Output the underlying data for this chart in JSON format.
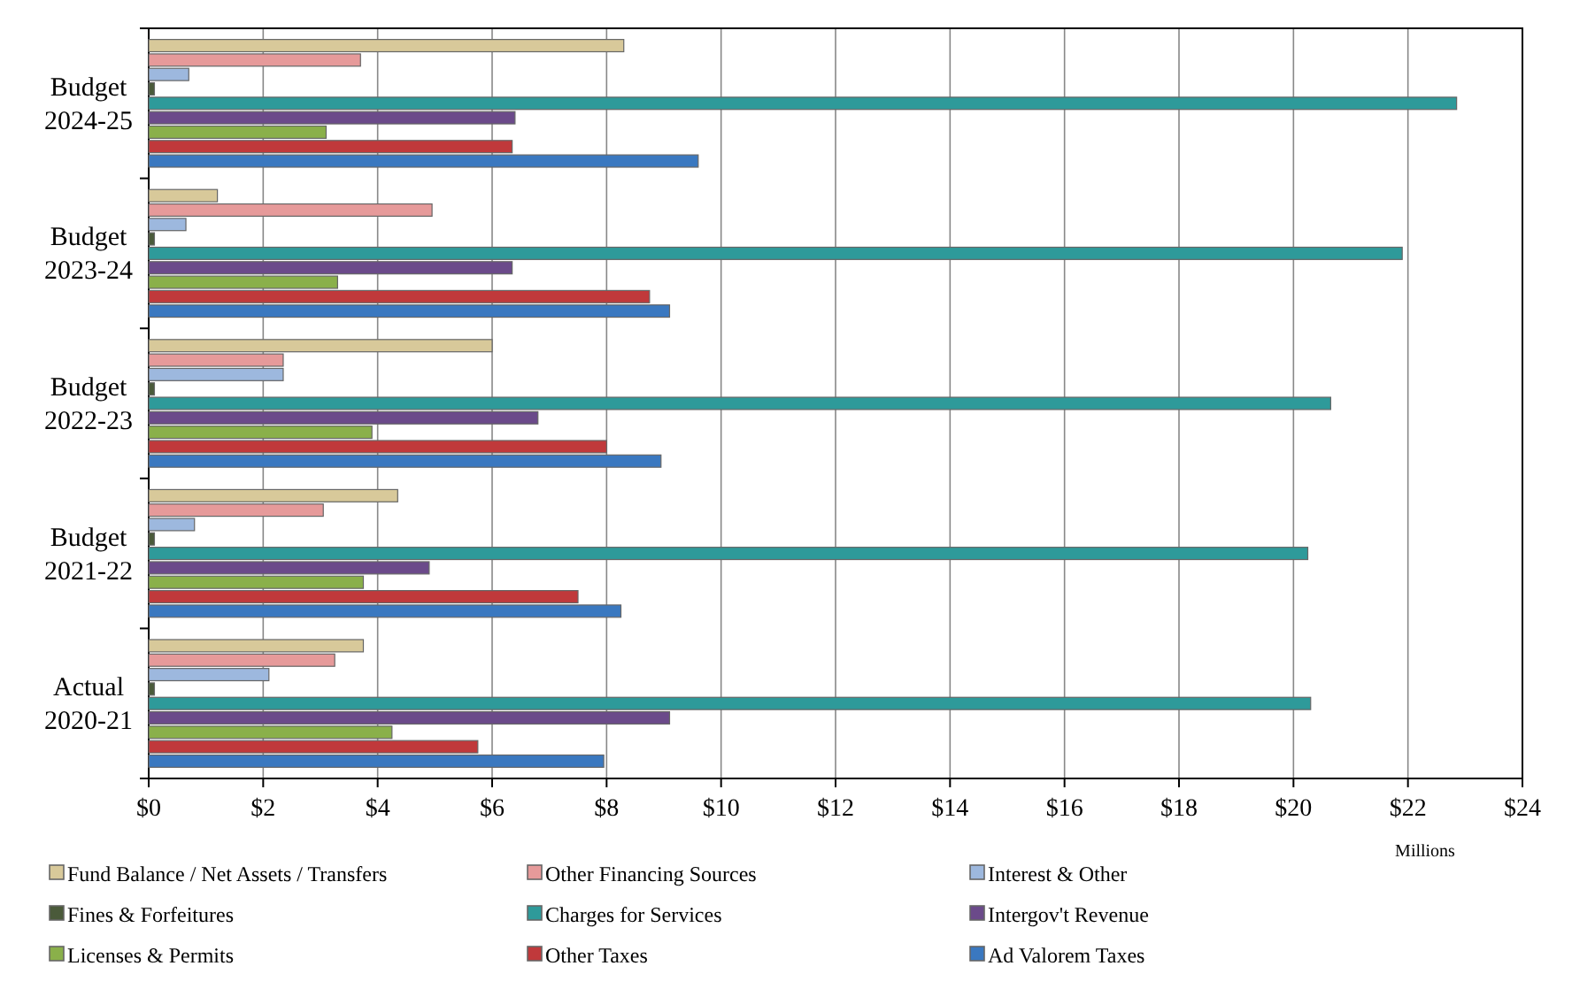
{
  "chart_data": {
    "type": "bar",
    "orientation": "horizontal",
    "categories": [
      "Budget 2024-25",
      "Budget 2023-24",
      "Budget 2022-23",
      "Budget 2021-22",
      "Actual 2020-21"
    ],
    "series": [
      {
        "name": "Fund Balance / Net Assets / Transfers",
        "color": "#d8c99a",
        "values": [
          8.3,
          1.2,
          6.0,
          4.35,
          3.75
        ]
      },
      {
        "name": "Other Financing Sources",
        "color": "#e69a9a",
        "values": [
          3.7,
          4.95,
          2.35,
          3.05,
          3.25
        ]
      },
      {
        "name": "Interest & Other",
        "color": "#9db8de",
        "values": [
          0.7,
          0.65,
          2.35,
          0.8,
          2.1
        ]
      },
      {
        "name": "Fines & Forfeitures",
        "color": "#4a5a3a",
        "values": [
          0.1,
          0.1,
          0.1,
          0.1,
          0.1
        ]
      },
      {
        "name": "Charges for Services",
        "color": "#2e9a9a",
        "values": [
          22.85,
          21.9,
          20.65,
          20.25,
          20.3
        ]
      },
      {
        "name": "Intergov't Revenue",
        "color": "#6b4a8a",
        "values": [
          6.4,
          6.35,
          6.8,
          4.9,
          9.1
        ]
      },
      {
        "name": "Licenses & Permits",
        "color": "#8ab04a",
        "values": [
          3.1,
          3.3,
          3.9,
          3.75,
          4.25
        ]
      },
      {
        "name": "Other Taxes",
        "color": "#c0393b",
        "values": [
          6.35,
          8.75,
          8.0,
          7.5,
          5.75
        ]
      },
      {
        "name": "Ad Valorem Taxes",
        "color": "#3a78c0",
        "values": [
          9.6,
          9.1,
          8.95,
          8.25,
          7.95
        ]
      }
    ],
    "xlim": [
      0,
      24
    ],
    "xticks": [
      {
        "value": 0,
        "label": "$0"
      },
      {
        "value": 2,
        "label": "$2"
      },
      {
        "value": 4,
        "label": "$4"
      },
      {
        "value": 6,
        "label": "$6"
      },
      {
        "value": 8,
        "label": "$8"
      },
      {
        "value": 10,
        "label": "$10"
      },
      {
        "value": 12,
        "label": "$12"
      },
      {
        "value": 14,
        "label": "$14"
      },
      {
        "value": 16,
        "label": "$16"
      },
      {
        "value": 18,
        "label": "$18"
      },
      {
        "value": 20,
        "label": "$20"
      },
      {
        "value": 22,
        "label": "$22"
      },
      {
        "value": 24,
        "label": "$24"
      }
    ],
    "grid": "x",
    "legend": "bottom",
    "annotations": [
      "Millions"
    ]
  }
}
